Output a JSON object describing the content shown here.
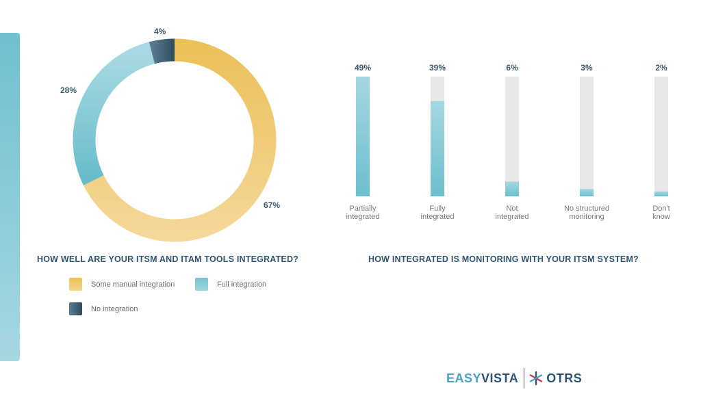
{
  "chart_data": [
    {
      "type": "pie",
      "title": "HOW WELL ARE YOUR ITSM AND ITAM TOOLS INTEGRATED?",
      "slices": [
        {
          "name": "Some manual integration",
          "value": 67,
          "label": "67%",
          "color": "#ecc45e"
        },
        {
          "name": "Full integration",
          "value": 28,
          "label": "28%",
          "color": "#79c4d2"
        },
        {
          "name": "No integration",
          "value": 4,
          "label": "4%",
          "color": "#3e5f75"
        }
      ],
      "legend": "bottom"
    },
    {
      "type": "bar",
      "title": "HOW INTEGRATED IS MONITORING WITH YOUR ITSM SYSTEM?",
      "categories": [
        "Partially integrated",
        "Fully integrated",
        "Not integrated",
        "No structured monitoring",
        "Don't know"
      ],
      "category_lines": [
        [
          "Partially",
          "integrated"
        ],
        [
          "Fully",
          "integrated"
        ],
        [
          "Not",
          "integrated"
        ],
        [
          "No structured",
          "monitoring"
        ],
        [
          "Don't",
          "know"
        ]
      ],
      "values": [
        49,
        39,
        6,
        3,
        2
      ],
      "value_labels": [
        "49%",
        "39%",
        "6%",
        "3%",
        "2%"
      ],
      "ylim": [
        0,
        49
      ],
      "bar_color": "#79c4d2",
      "track_color": "#e8e8e8"
    }
  ],
  "logo": {
    "easy": "EASY",
    "vista": "VISTA",
    "otrs": "OTRS"
  }
}
